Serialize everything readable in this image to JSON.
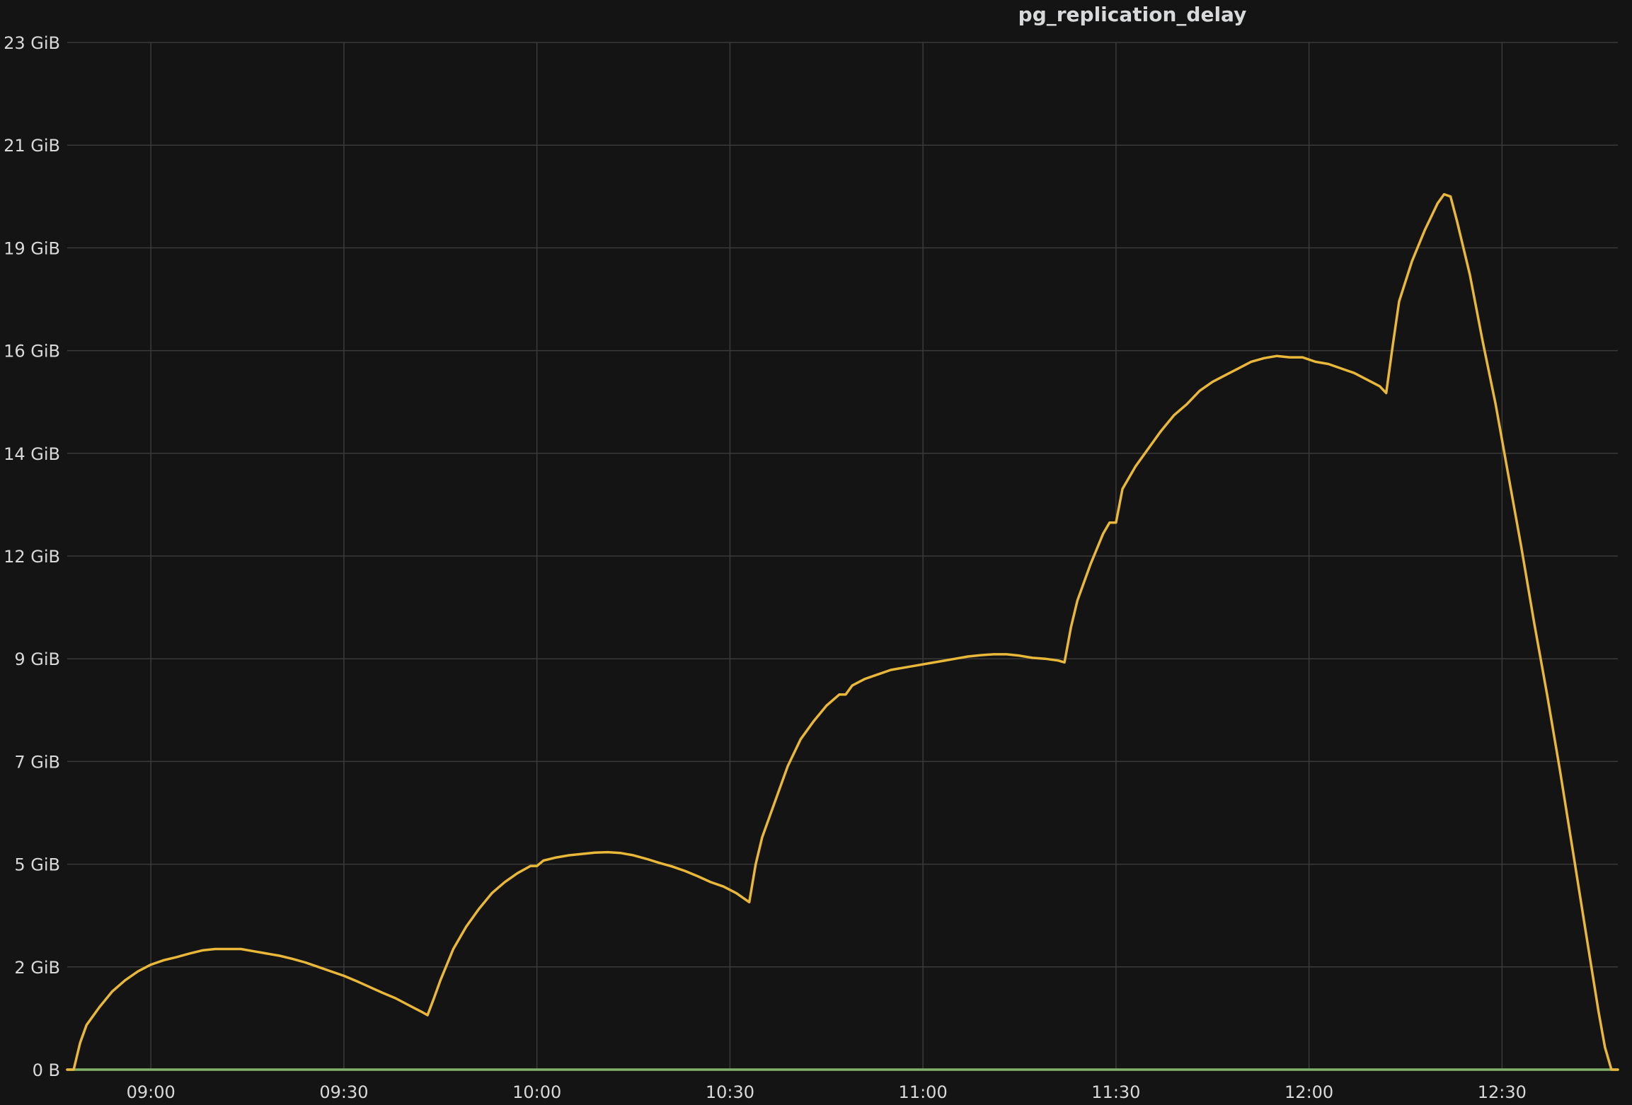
{
  "panel": {
    "title": "pg_replication_delay"
  },
  "colors": {
    "background": "#141414",
    "series_main": "#eab839",
    "series_flat": "#7eb26d",
    "grid": "#3a3a3a",
    "text": "#d8d9da"
  },
  "chart_data": {
    "type": "line",
    "title": "pg_replication_delay",
    "xlabel": "",
    "ylabel": "",
    "grid": true,
    "legend": "none",
    "y_unit": "GiB",
    "ylim": [
      0,
      23
    ],
    "y_ticks": [
      {
        "value": 0,
        "label": "0 B"
      },
      {
        "value": 2.3,
        "label": "2 GiB"
      },
      {
        "value": 4.6,
        "label": "5 GiB"
      },
      {
        "value": 6.9,
        "label": "7 GiB"
      },
      {
        "value": 9.2,
        "label": "9 GiB"
      },
      {
        "value": 11.5,
        "label": "12 GiB"
      },
      {
        "value": 13.8,
        "label": "14 GiB"
      },
      {
        "value": 16.1,
        "label": "16 GiB"
      },
      {
        "value": 18.4,
        "label": "19 GiB"
      },
      {
        "value": 20.7,
        "label": "21 GiB"
      },
      {
        "value": 23,
        "label": "23 GiB"
      }
    ],
    "xlim": [
      "08:47",
      "12:48"
    ],
    "x_ticks": [
      "09:00",
      "09:30",
      "10:00",
      "10:30",
      "11:00",
      "11:30",
      "12:00",
      "12:30"
    ],
    "series": [
      {
        "color": "#eab839",
        "points": [
          [
            "08:47",
            0
          ],
          [
            "08:48",
            0
          ],
          [
            "08:49",
            0.6
          ],
          [
            "08:50",
            1.0
          ],
          [
            "08:52",
            1.4
          ],
          [
            "08:54",
            1.75
          ],
          [
            "08:56",
            2.0
          ],
          [
            "08:58",
            2.2
          ],
          [
            "09:00",
            2.35
          ],
          [
            "09:02",
            2.45
          ],
          [
            "09:04",
            2.52
          ],
          [
            "09:06",
            2.6
          ],
          [
            "09:08",
            2.67
          ],
          [
            "09:10",
            2.7
          ],
          [
            "09:12",
            2.7
          ],
          [
            "09:14",
            2.7
          ],
          [
            "09:16",
            2.65
          ],
          [
            "09:18",
            2.6
          ],
          [
            "09:20",
            2.55
          ],
          [
            "09:22",
            2.48
          ],
          [
            "09:24",
            2.4
          ],
          [
            "09:26",
            2.3
          ],
          [
            "09:28",
            2.2
          ],
          [
            "09:30",
            2.1
          ],
          [
            "09:32",
            1.98
          ],
          [
            "09:34",
            1.85
          ],
          [
            "09:36",
            1.72
          ],
          [
            "09:38",
            1.6
          ],
          [
            "09:40",
            1.45
          ],
          [
            "09:42",
            1.3
          ],
          [
            "09:43",
            1.22
          ],
          [
            "09:44",
            1.6
          ],
          [
            "09:45",
            2.0
          ],
          [
            "09:47",
            2.7
          ],
          [
            "09:49",
            3.2
          ],
          [
            "09:51",
            3.6
          ],
          [
            "09:53",
            3.95
          ],
          [
            "09:55",
            4.2
          ],
          [
            "09:57",
            4.4
          ],
          [
            "09:59",
            4.56
          ],
          [
            "10:00",
            4.56
          ],
          [
            "10:01",
            4.68
          ],
          [
            "10:03",
            4.75
          ],
          [
            "10:05",
            4.8
          ],
          [
            "10:07",
            4.83
          ],
          [
            "10:09",
            4.86
          ],
          [
            "10:11",
            4.87
          ],
          [
            "10:13",
            4.85
          ],
          [
            "10:15",
            4.8
          ],
          [
            "10:17",
            4.72
          ],
          [
            "10:19",
            4.63
          ],
          [
            "10:21",
            4.55
          ],
          [
            "10:23",
            4.45
          ],
          [
            "10:25",
            4.33
          ],
          [
            "10:27",
            4.2
          ],
          [
            "10:29",
            4.1
          ],
          [
            "10:31",
            3.95
          ],
          [
            "10:33",
            3.75
          ],
          [
            "10:34",
            4.6
          ],
          [
            "10:35",
            5.2
          ],
          [
            "10:37",
            6.0
          ],
          [
            "10:39",
            6.8
          ],
          [
            "10:41",
            7.4
          ],
          [
            "10:43",
            7.8
          ],
          [
            "10:45",
            8.15
          ],
          [
            "10:47",
            8.4
          ],
          [
            "10:48",
            8.4
          ],
          [
            "10:49",
            8.6
          ],
          [
            "10:51",
            8.75
          ],
          [
            "10:53",
            8.85
          ],
          [
            "10:55",
            8.95
          ],
          [
            "10:57",
            9.0
          ],
          [
            "10:59",
            9.05
          ],
          [
            "11:01",
            9.1
          ],
          [
            "11:03",
            9.15
          ],
          [
            "11:05",
            9.2
          ],
          [
            "11:07",
            9.25
          ],
          [
            "11:09",
            9.28
          ],
          [
            "11:11",
            9.3
          ],
          [
            "11:13",
            9.3
          ],
          [
            "11:15",
            9.27
          ],
          [
            "11:17",
            9.22
          ],
          [
            "11:19",
            9.2
          ],
          [
            "11:21",
            9.16
          ],
          [
            "11:22",
            9.12
          ],
          [
            "11:23",
            9.9
          ],
          [
            "11:24",
            10.5
          ],
          [
            "11:26",
            11.3
          ],
          [
            "11:28",
            12.0
          ],
          [
            "11:29",
            12.25
          ],
          [
            "11:30",
            12.25
          ],
          [
            "11:31",
            13.0
          ],
          [
            "11:33",
            13.5
          ],
          [
            "11:35",
            13.9
          ],
          [
            "11:37",
            14.3
          ],
          [
            "11:39",
            14.65
          ],
          [
            "11:41",
            14.9
          ],
          [
            "11:43",
            15.2
          ],
          [
            "11:45",
            15.4
          ],
          [
            "11:47",
            15.55
          ],
          [
            "11:49",
            15.7
          ],
          [
            "11:51",
            15.85
          ],
          [
            "11:53",
            15.93
          ],
          [
            "11:55",
            15.98
          ],
          [
            "11:57",
            15.95
          ],
          [
            "11:59",
            15.95
          ],
          [
            "12:01",
            15.85
          ],
          [
            "12:03",
            15.8
          ],
          [
            "12:05",
            15.7
          ],
          [
            "12:07",
            15.6
          ],
          [
            "12:09",
            15.45
          ],
          [
            "12:11",
            15.3
          ],
          [
            "12:12",
            15.15
          ],
          [
            "12:13",
            16.2
          ],
          [
            "12:14",
            17.2
          ],
          [
            "12:16",
            18.1
          ],
          [
            "12:18",
            18.8
          ],
          [
            "12:20",
            19.4
          ],
          [
            "12:21",
            19.6
          ],
          [
            "12:22",
            19.55
          ],
          [
            "12:23",
            19.0
          ],
          [
            "12:25",
            17.8
          ],
          [
            "12:27",
            16.3
          ],
          [
            "12:29",
            14.9
          ],
          [
            "12:31",
            13.3
          ],
          [
            "12:33",
            11.7
          ],
          [
            "12:35",
            10.0
          ],
          [
            "12:37",
            8.4
          ],
          [
            "12:39",
            6.7
          ],
          [
            "12:41",
            4.9
          ],
          [
            "12:43",
            3.1
          ],
          [
            "12:45",
            1.3
          ],
          [
            "12:46",
            0.5
          ],
          [
            "12:47",
            0
          ],
          [
            "12:48",
            0
          ]
        ]
      },
      {
        "color": "#7eb26d",
        "points": [
          [
            "08:47",
            0
          ],
          [
            "12:48",
            0
          ]
        ]
      }
    ]
  }
}
